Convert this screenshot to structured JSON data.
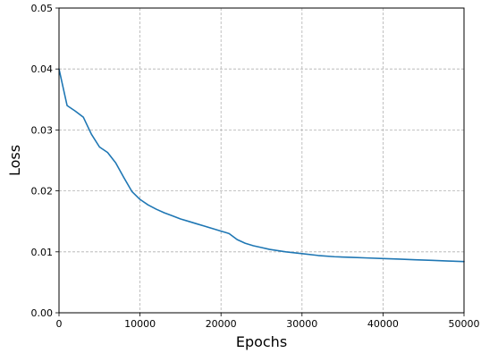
{
  "chart_data": {
    "type": "line",
    "title": "",
    "xlabel": "Epochs",
    "ylabel": "Loss",
    "xlim": [
      0,
      50000
    ],
    "ylim": [
      0.0,
      0.05
    ],
    "x_ticks": [
      0,
      10000,
      20000,
      30000,
      40000,
      50000
    ],
    "x_tick_labels": [
      "0",
      "10000",
      "20000",
      "30000",
      "40000",
      "50000"
    ],
    "y_ticks": [
      0.0,
      0.01,
      0.02,
      0.03,
      0.04,
      0.05
    ],
    "y_tick_labels": [
      "0.00",
      "0.01",
      "0.02",
      "0.03",
      "0.04",
      "0.05"
    ],
    "grid": true,
    "series": [
      {
        "color": "#1f77b4",
        "x": [
          0,
          1000,
          2000,
          3000,
          4000,
          5000,
          6000,
          7000,
          8000,
          9000,
          10000,
          11000,
          12000,
          13000,
          14000,
          15000,
          16000,
          17000,
          18000,
          19000,
          20000,
          21000,
          22000,
          23000,
          24000,
          25000,
          26000,
          28000,
          30000,
          32000,
          34000,
          36000,
          38000,
          40000,
          42000,
          44000,
          46000,
          48000,
          50000
        ],
        "y": [
          0.04,
          0.034,
          0.0331,
          0.0321,
          0.0293,
          0.0272,
          0.0263,
          0.0246,
          0.0222,
          0.0199,
          0.0186,
          0.0177,
          0.017,
          0.0164,
          0.0159,
          0.0154,
          0.015,
          0.0146,
          0.0142,
          0.0138,
          0.0134,
          0.013,
          0.012,
          0.0114,
          0.011,
          0.0107,
          0.0104,
          0.01,
          0.0097,
          0.0094,
          0.0092,
          0.0091,
          0.009,
          0.0089,
          0.0088,
          0.0087,
          0.0086,
          0.0085,
          0.0084
        ]
      }
    ]
  }
}
